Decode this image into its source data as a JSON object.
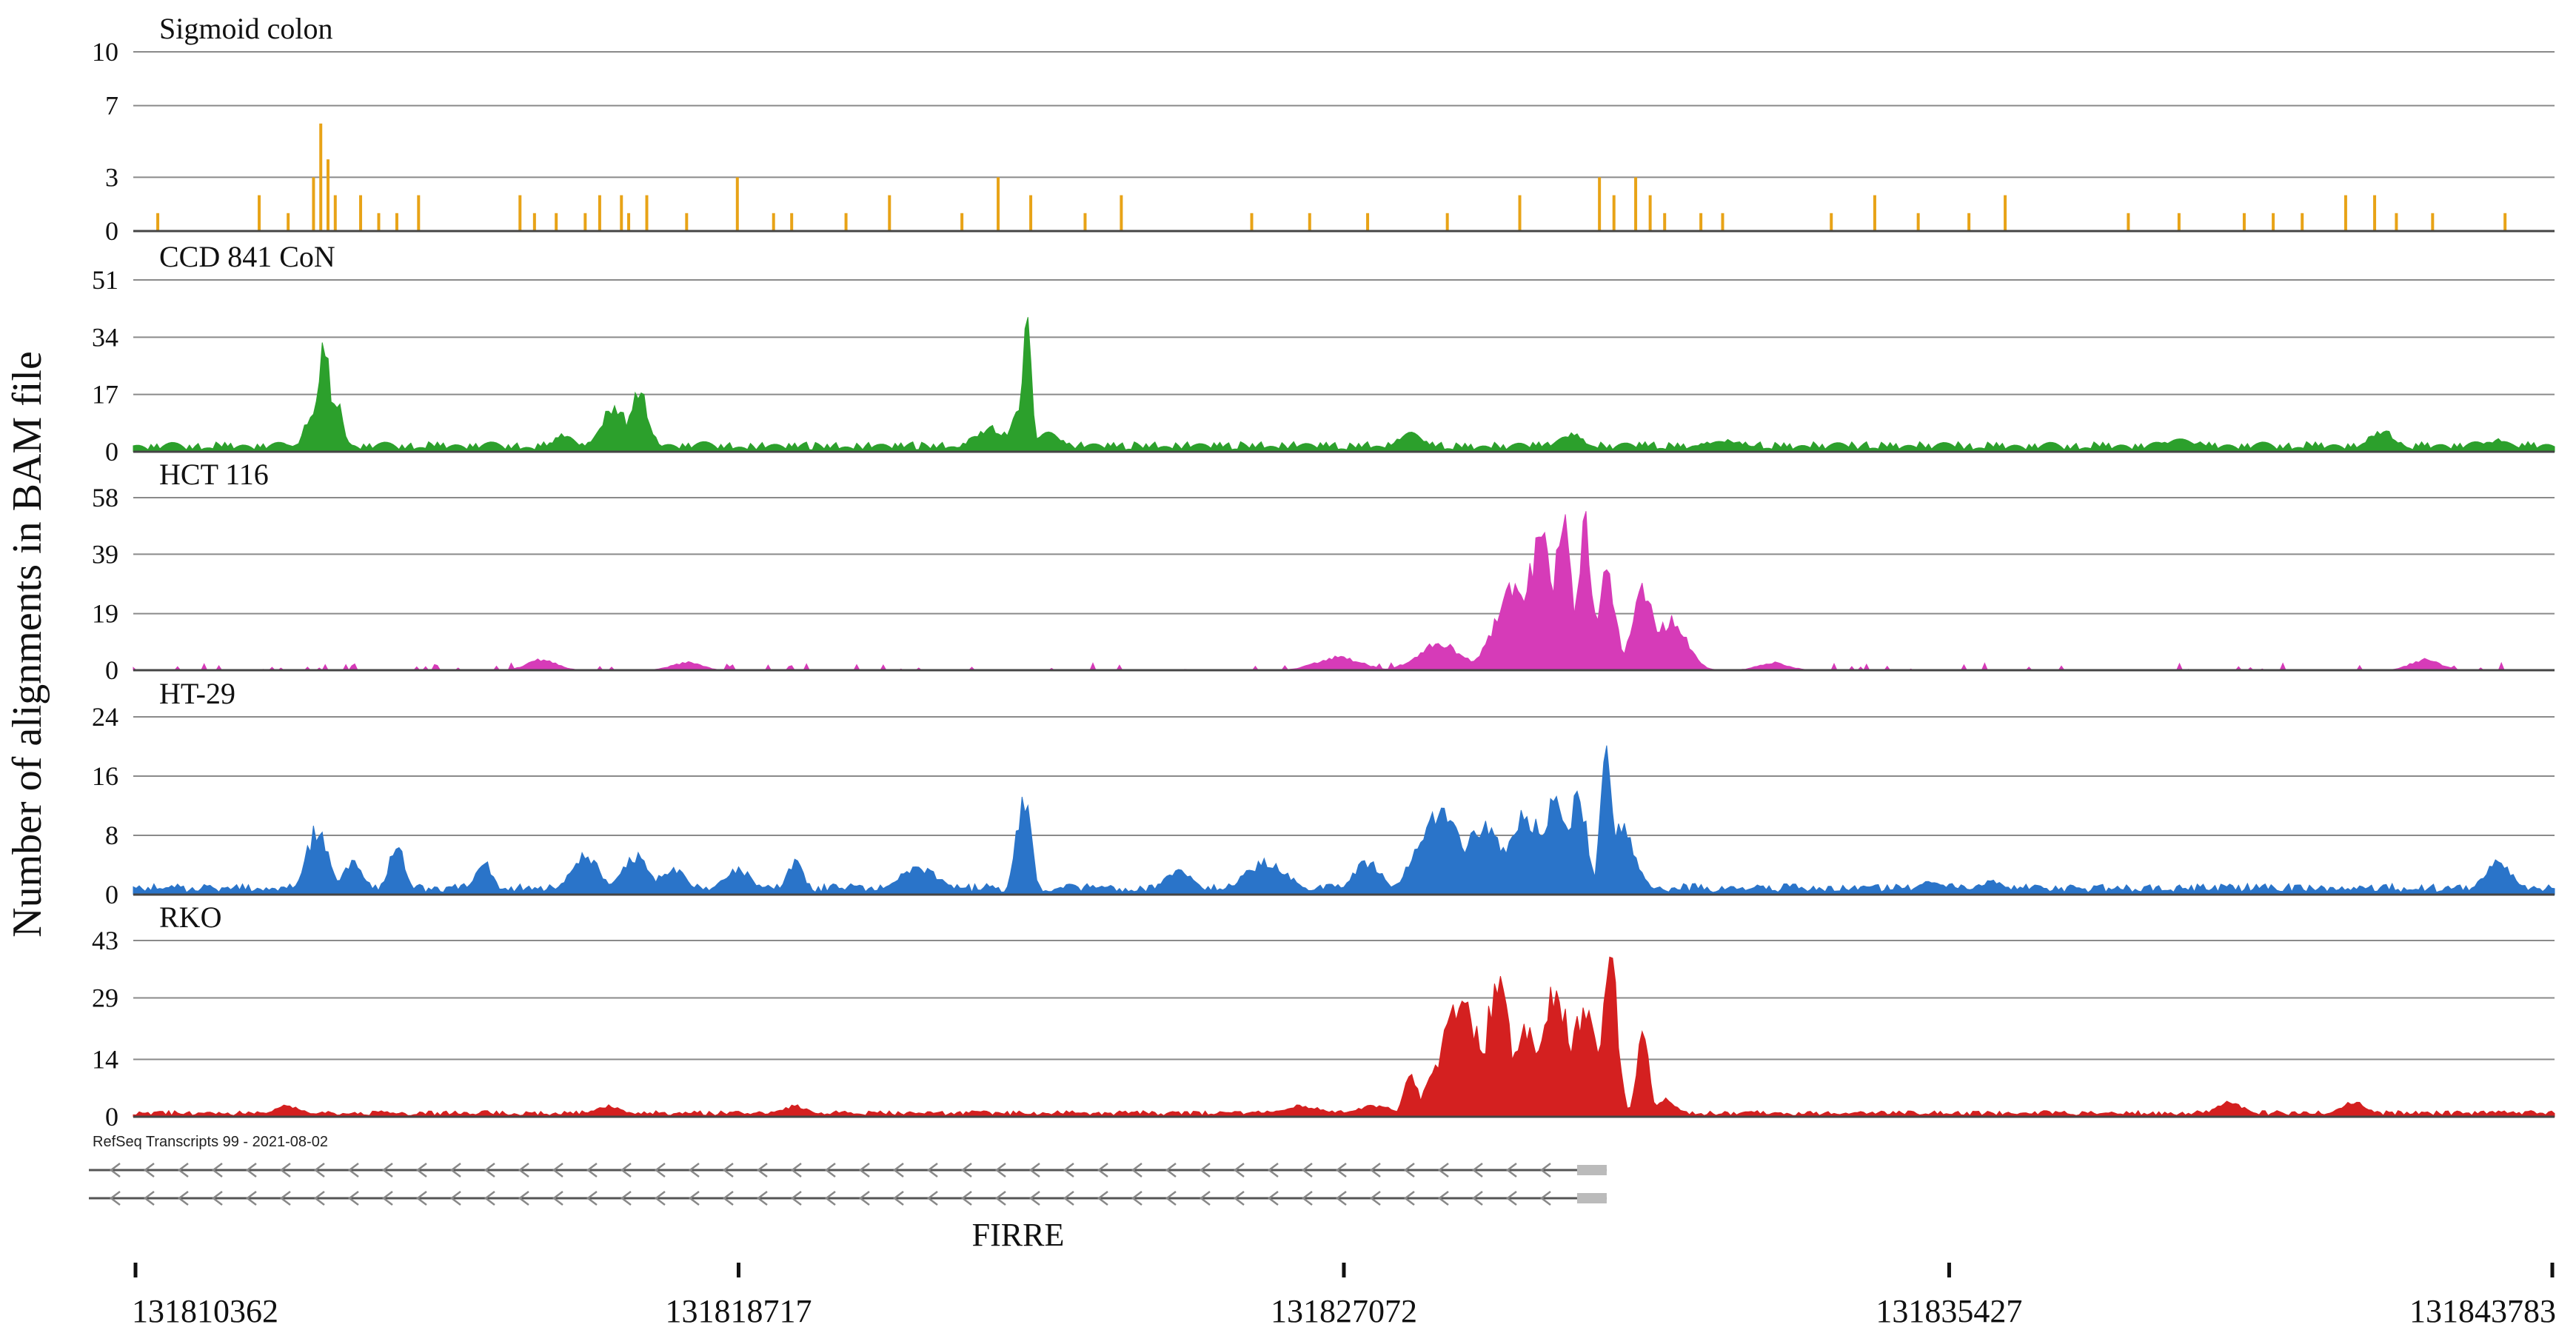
{
  "chart_data": {
    "type": "area",
    "ylabel": "Number of alignments in BAM file",
    "x_ticks": [
      "131810362",
      "131818717",
      "131827072",
      "131835427",
      "131843783"
    ],
    "xlim": [
      131810362,
      131843783
    ],
    "annotation_track": {
      "label": "RefSeq Transcripts 99 - 2021-08-02",
      "gene": "FIRRE",
      "transcripts": 2,
      "strand": "minus",
      "start": 131810362,
      "end": 131830700
    },
    "series": [
      {
        "name": "Sigmoid colon",
        "color": "#E8A317",
        "style": "spikes",
        "y_ticks": [
          0,
          3,
          7,
          10
        ],
        "ylim": [
          0,
          10
        ],
        "points": [
          [
            131810700,
            1
          ],
          [
            131812100,
            2
          ],
          [
            131812500,
            1
          ],
          [
            131812850,
            3
          ],
          [
            131812950,
            6
          ],
          [
            131813050,
            4
          ],
          [
            131813150,
            2
          ],
          [
            131813500,
            2
          ],
          [
            131813750,
            1
          ],
          [
            131814000,
            1
          ],
          [
            131814300,
            2
          ],
          [
            131815700,
            2
          ],
          [
            131815900,
            1
          ],
          [
            131816200,
            1
          ],
          [
            131816600,
            1
          ],
          [
            131816800,
            2
          ],
          [
            131817100,
            2
          ],
          [
            131817200,
            1
          ],
          [
            131817450,
            2
          ],
          [
            131818000,
            1
          ],
          [
            131818700,
            3
          ],
          [
            131819200,
            1
          ],
          [
            131819450,
            1
          ],
          [
            131820200,
            1
          ],
          [
            131820800,
            2
          ],
          [
            131821800,
            1
          ],
          [
            131822300,
            3
          ],
          [
            131822750,
            2
          ],
          [
            131823500,
            1
          ],
          [
            131824000,
            2
          ],
          [
            131825800,
            1
          ],
          [
            131826600,
            1
          ],
          [
            131827400,
            1
          ],
          [
            131828500,
            1
          ],
          [
            131829500,
            2
          ],
          [
            131830600,
            3
          ],
          [
            131830800,
            2
          ],
          [
            131831100,
            3
          ],
          [
            131831300,
            2
          ],
          [
            131831500,
            1
          ],
          [
            131832000,
            1
          ],
          [
            131832300,
            1
          ],
          [
            131833800,
            1
          ],
          [
            131834400,
            2
          ],
          [
            131835000,
            1
          ],
          [
            131835700,
            1
          ],
          [
            131836200,
            2
          ],
          [
            131837900,
            1
          ],
          [
            131838600,
            1
          ],
          [
            131839500,
            1
          ],
          [
            131839900,
            1
          ],
          [
            131840300,
            1
          ],
          [
            131840900,
            2
          ],
          [
            131841300,
            2
          ],
          [
            131841600,
            1
          ],
          [
            131842100,
            1
          ],
          [
            131843100,
            1
          ]
        ]
      },
      {
        "name": "CCD 841 CoN",
        "color": "#2CA02C",
        "style": "area",
        "y_ticks": [
          0,
          17,
          34,
          51
        ],
        "ylim": [
          0,
          51
        ],
        "baseline": 2,
        "peaks": [
          [
            131812550,
            2,
            150
          ],
          [
            131812850,
            14,
            120
          ],
          [
            131813000,
            36,
            90
          ],
          [
            131813150,
            18,
            100
          ],
          [
            131816300,
            6,
            150
          ],
          [
            131817000,
            15,
            200
          ],
          [
            131817350,
            20,
            130
          ],
          [
            131822200,
            8,
            250
          ],
          [
            131822600,
            15,
            120
          ],
          [
            131822700,
            50,
            60
          ],
          [
            131823000,
            6,
            200
          ],
          [
            131828000,
            6,
            200
          ],
          [
            131830200,
            6,
            200
          ],
          [
            131832300,
            4,
            300
          ],
          [
            131838600,
            4,
            300
          ],
          [
            131841400,
            7,
            200
          ],
          [
            131843000,
            4,
            200
          ]
        ]
      },
      {
        "name": "HCT 116",
        "color": "#D63BB8",
        "style": "area",
        "y_ticks": [
          0,
          19,
          39,
          58
        ],
        "ylim": [
          0,
          58
        ],
        "baseline": 0,
        "peaks": [
          [
            131816000,
            4,
            200
          ],
          [
            131818000,
            3,
            200
          ],
          [
            131827000,
            5,
            300
          ],
          [
            131828400,
            10,
            300
          ],
          [
            131829400,
            30,
            250
          ],
          [
            131829800,
            50,
            200
          ],
          [
            131830100,
            58,
            120
          ],
          [
            131830400,
            55,
            100
          ],
          [
            131830700,
            35,
            120
          ],
          [
            131831200,
            30,
            150
          ],
          [
            131831600,
            20,
            200
          ],
          [
            131833000,
            3,
            200
          ],
          [
            131842000,
            4,
            200
          ]
        ]
      },
      {
        "name": "HT-29",
        "color": "#2A74C9",
        "style": "area",
        "y_ticks": [
          0,
          8,
          16,
          24
        ],
        "ylim": [
          0,
          24
        ],
        "baseline": 1,
        "peaks": [
          [
            131812900,
            10,
            150
          ],
          [
            131813400,
            5,
            150
          ],
          [
            131814000,
            7,
            120
          ],
          [
            131815200,
            5,
            120
          ],
          [
            131816600,
            6,
            200
          ],
          [
            131817300,
            6,
            200
          ],
          [
            131817800,
            4,
            200
          ],
          [
            131818700,
            4,
            200
          ],
          [
            131819500,
            5,
            120
          ],
          [
            131821200,
            4,
            300
          ],
          [
            131822650,
            15,
            100
          ],
          [
            131824800,
            4,
            200
          ],
          [
            131826000,
            5,
            300
          ],
          [
            131827400,
            5,
            200
          ],
          [
            131828400,
            13,
            300
          ],
          [
            131829000,
            10,
            300
          ],
          [
            131829600,
            12,
            300
          ],
          [
            131830000,
            14,
            250
          ],
          [
            131830300,
            16,
            120
          ],
          [
            131830700,
            23,
            80
          ],
          [
            131830900,
            10,
            200
          ],
          [
            131835200,
            2,
            200
          ],
          [
            131836000,
            2,
            200
          ],
          [
            131843000,
            5,
            200
          ]
        ]
      },
      {
        "name": "RKO",
        "color": "#D42020",
        "style": "area",
        "y_ticks": [
          0,
          14,
          29,
          43
        ],
        "ylim": [
          0,
          43
        ],
        "baseline": 1,
        "peaks": [
          [
            131812500,
            3,
            200
          ],
          [
            131816900,
            3,
            200
          ],
          [
            131819500,
            3,
            200
          ],
          [
            131826500,
            3,
            300
          ],
          [
            131827500,
            3,
            300
          ],
          [
            131828000,
            12,
            100
          ],
          [
            131828700,
            30,
            300
          ],
          [
            131829200,
            40,
            150
          ],
          [
            131829600,
            25,
            200
          ],
          [
            131830000,
            35,
            200
          ],
          [
            131830400,
            30,
            200
          ],
          [
            131830750,
            43,
            100
          ],
          [
            131831200,
            25,
            80
          ],
          [
            131831500,
            5,
            150
          ],
          [
            131839300,
            4,
            200
          ],
          [
            131841000,
            4,
            200
          ]
        ]
      }
    ]
  }
}
